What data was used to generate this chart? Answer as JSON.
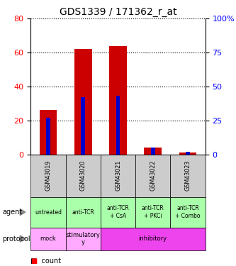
{
  "title": "GDS1339 / 171362_r_at",
  "samples": [
    "GSM43019",
    "GSM43020",
    "GSM43021",
    "GSM43022",
    "GSM43023"
  ],
  "count_values": [
    26,
    62,
    64,
    4,
    1
  ],
  "percentile_values": [
    27,
    42,
    43,
    5,
    2
  ],
  "left_ylim": [
    0,
    80
  ],
  "right_ylim": [
    0,
    100
  ],
  "left_yticks": [
    0,
    20,
    40,
    60,
    80
  ],
  "right_yticks": [
    0,
    25,
    50,
    75,
    100
  ],
  "right_yticklabels": [
    "0",
    "25",
    "50",
    "75",
    "100%"
  ],
  "bar_color_count": "#cc0000",
  "bar_color_pct": "#0000cc",
  "agent_labels": [
    "untreated",
    "anti-TCR",
    "anti-TCR\n+ CsA",
    "anti-TCR\n+ PKCi",
    "anti-TCR\n+ Combo"
  ],
  "agent_bg": "#aaffaa",
  "sample_bg": "#cccccc",
  "protocol_defs": [
    {
      "label": "mock",
      "start": 0,
      "end": 1,
      "color": "#ffaaff"
    },
    {
      "label": "stimulatory\ny",
      "start": 1,
      "end": 2,
      "color": "#ffaaff"
    },
    {
      "label": "inhibitory",
      "start": 2,
      "end": 5,
      "color": "#ee44ee"
    }
  ],
  "grid_yticks": [
    20,
    40,
    60,
    80
  ],
  "count_bar_width": 0.5,
  "pct_bar_width": 0.12
}
